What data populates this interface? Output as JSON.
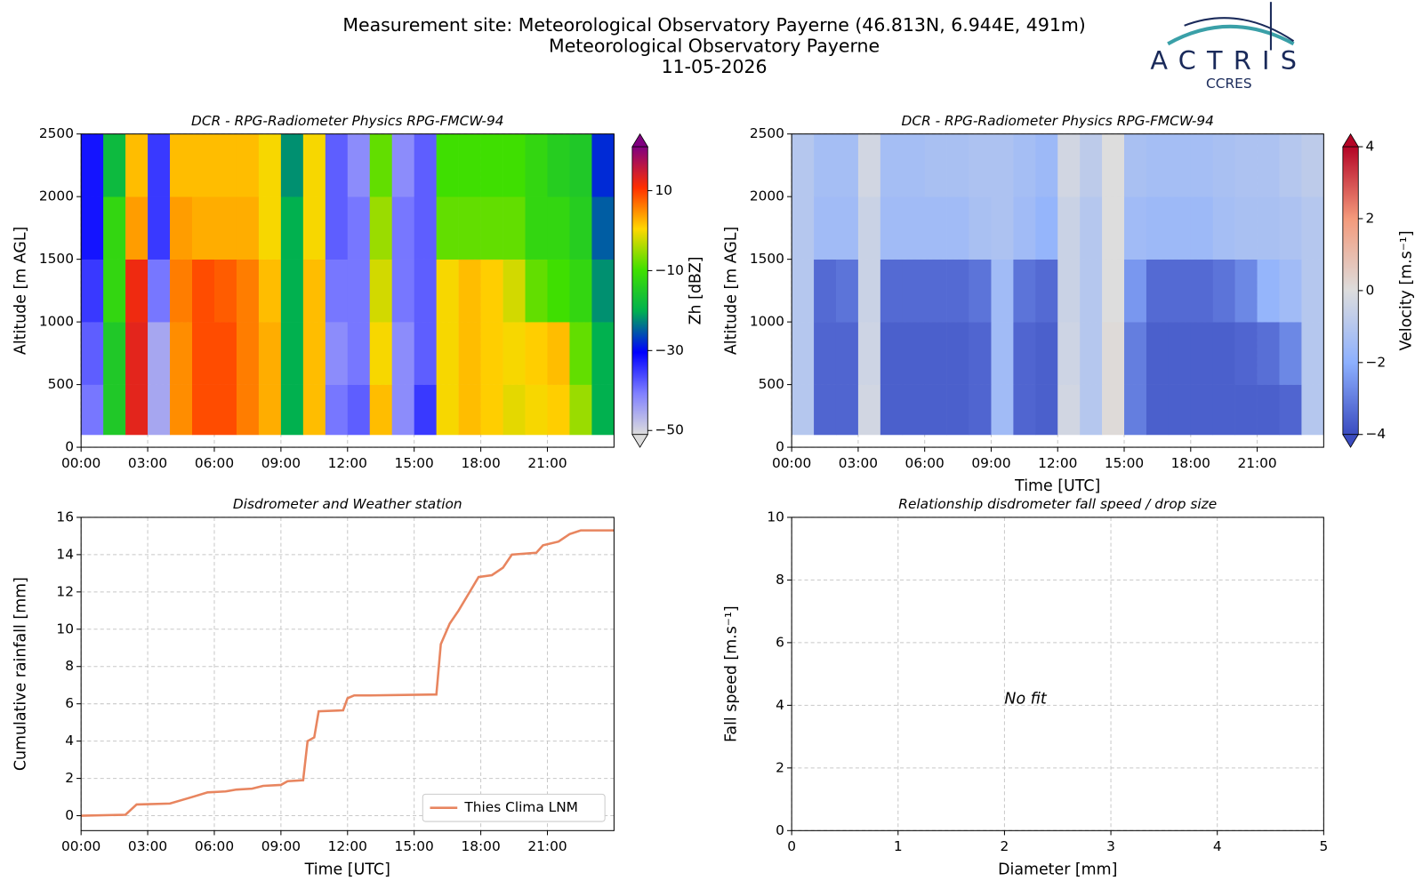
{
  "figure": {
    "title": [
      "Measurement site: Meteorological Observatory Payerne (46.813N, 6.944E, 491m)",
      "Meteorological Observatory Payerne",
      "11-05-2026"
    ],
    "logo": {
      "name": "ACTRIS",
      "subtitle": "CCRES"
    }
  },
  "chart_data": [
    {
      "type": "heatmap",
      "title": "DCR - RPG-Radiometer Physics RPG-FMCW-94",
      "y_label": "Altitude [m AGL]",
      "grid": true,
      "xlim": [
        0,
        24
      ],
      "xticks": [
        {
          "value": 0,
          "label": "00:00"
        },
        {
          "value": 3,
          "label": "03:00"
        },
        {
          "value": 6,
          "label": "06:00"
        },
        {
          "value": 9,
          "label": "09:00"
        },
        {
          "value": 12,
          "label": "12:00"
        },
        {
          "value": 15,
          "label": "15:00"
        },
        {
          "value": 18,
          "label": "18:00"
        },
        {
          "value": 21,
          "label": "21:00"
        }
      ],
      "ylim": [
        0,
        2500
      ],
      "yticks": [
        0,
        500,
        1000,
        1500,
        2000,
        2500
      ],
      "x_edges": [
        0,
        1,
        2,
        3,
        4,
        5,
        6,
        7,
        8,
        9,
        10,
        11,
        12,
        13,
        14,
        15,
        16,
        17,
        18,
        19,
        20,
        21,
        22,
        23,
        24
      ],
      "y_edges": [
        100,
        500,
        1000,
        1500,
        2000,
        2500
      ],
      "z": [
        [
          -40,
          -15,
          13,
          -45,
          5,
          9,
          9,
          6,
          3,
          -20,
          2,
          -40,
          -38,
          2,
          -42,
          -35,
          0,
          2,
          1,
          -1,
          0,
          1,
          -5,
          -20
        ],
        [
          -38,
          -15,
          13,
          -45,
          5,
          9,
          9,
          6,
          3,
          -20,
          2,
          -42,
          -40,
          0,
          -42,
          -38,
          0,
          2,
          1,
          0,
          1,
          2,
          -8,
          -20
        ],
        [
          -35,
          -12,
          12,
          -40,
          6,
          9,
          8,
          6,
          2,
          -20,
          2,
          -40,
          -40,
          -2,
          -40,
          -38,
          0,
          2,
          1,
          -2,
          -8,
          -10,
          -12,
          -22
        ],
        [
          -32,
          -12,
          4,
          -35,
          4,
          3,
          3,
          3,
          0,
          -20,
          0,
          -38,
          -40,
          -5,
          -40,
          -38,
          -8,
          -8,
          -8,
          -8,
          -12,
          -12,
          -14,
          -25
        ],
        [
          -32,
          -18,
          2,
          -35,
          2,
          2,
          2,
          2,
          0,
          -22,
          0,
          -38,
          -42,
          -8,
          -42,
          -38,
          -10,
          -10,
          -10,
          -10,
          -12,
          -14,
          -15,
          -28
        ]
      ],
      "colorbar": {
        "label": "Zh [dBZ]",
        "clim": [
          -51,
          21
        ],
        "ticks": [
          10,
          {
            "value": -10,
            "label": "−10"
          },
          {
            "value": -30,
            "label": "−30"
          },
          {
            "value": -50,
            "label": "−50"
          }
        ],
        "colormap": [
          "#dcdcdc",
          "#8080ff",
          "#0000ff",
          "#00b050",
          "#40e000",
          "#ffd700",
          "#ff3000",
          "#800080"
        ]
      }
    },
    {
      "type": "heatmap",
      "title": "DCR - RPG-Radiometer Physics RPG-FMCW-94",
      "x_label": "Time [UTC]",
      "y_label": "Altitude [m AGL]",
      "grid": true,
      "xlim": [
        0,
        24
      ],
      "xticks": [
        {
          "value": 0,
          "label": "00:00"
        },
        {
          "value": 3,
          "label": "03:00"
        },
        {
          "value": 6,
          "label": "06:00"
        },
        {
          "value": 9,
          "label": "09:00"
        },
        {
          "value": 12,
          "label": "12:00"
        },
        {
          "value": 15,
          "label": "15:00"
        },
        {
          "value": 18,
          "label": "18:00"
        },
        {
          "value": 21,
          "label": "21:00"
        }
      ],
      "ylim": [
        0,
        2500
      ],
      "yticks": [
        0,
        500,
        1000,
        1500,
        2000,
        2500
      ],
      "x_edges": [
        0,
        1,
        2,
        3,
        4,
        5,
        6,
        7,
        8,
        9,
        10,
        11,
        12,
        13,
        14,
        15,
        16,
        17,
        18,
        19,
        20,
        21,
        22,
        23,
        24
      ],
      "y_edges": [
        100,
        500,
        1000,
        1500,
        2000,
        2500
      ],
      "z": [
        [
          -1,
          -3.5,
          -3.5,
          -0.3,
          -3.6,
          -3.6,
          -3.6,
          -3.6,
          -3.5,
          -1.5,
          -3.5,
          -3.6,
          -0.3,
          -1,
          0.1,
          -3,
          -3.6,
          -3.6,
          -3.6,
          -3.6,
          -3.6,
          -3.6,
          -3.5,
          -1
        ],
        [
          -1,
          -3.5,
          -3.5,
          -0.4,
          -3.6,
          -3.6,
          -3.6,
          -3.6,
          -3.5,
          -1.5,
          -3.5,
          -3.6,
          -0.4,
          -1,
          0.1,
          -3,
          -3.6,
          -3.6,
          -3.6,
          -3.6,
          -3.5,
          -3.3,
          -2.8,
          -1
        ],
        [
          -1,
          -3.4,
          -3.2,
          -0.5,
          -3.4,
          -3.4,
          -3.4,
          -3.4,
          -3.2,
          -1.5,
          -3.2,
          -3.4,
          -0.5,
          -1,
          0,
          -2.5,
          -3.4,
          -3.4,
          -3.4,
          -3.2,
          -2.8,
          -1.8,
          -1.5,
          -1
        ],
        [
          -1,
          -1.5,
          -1.5,
          -0.5,
          -1.5,
          -1.5,
          -1.5,
          -1.5,
          -1.3,
          -1.2,
          -1.5,
          -1.8,
          -0.5,
          -1,
          0,
          -1.5,
          -1.6,
          -1.6,
          -1.6,
          -1.4,
          -1.3,
          -1.3,
          -1.2,
          -1
        ],
        [
          -1,
          -1.4,
          -1.4,
          -0.3,
          -1.4,
          -1.4,
          -1.3,
          -1.3,
          -1.2,
          -1.2,
          -1.4,
          -1.6,
          -0.3,
          -0.8,
          0,
          -1.3,
          -1.4,
          -1.4,
          -1.4,
          -1.3,
          -1.2,
          -1.2,
          -1,
          -0.8
        ]
      ],
      "colorbar": {
        "label": "Velocity [m.s⁻¹]",
        "clim": [
          -4,
          4
        ],
        "ticks": [
          4,
          2,
          0,
          {
            "value": -2,
            "label": "−2"
          },
          {
            "value": -4,
            "label": "−4"
          }
        ],
        "colormap": [
          "#3b4cc0",
          "#8db0fe",
          "#dddddd",
          "#f49a7b",
          "#b40426"
        ]
      }
    },
    {
      "type": "line",
      "title": "Disdrometer and Weather station",
      "x_label": "Time [UTC]",
      "y_label": "Cumulative rainfall [mm]",
      "grid": true,
      "legend": "lower right",
      "xlim": [
        0,
        24
      ],
      "xticks": [
        {
          "value": 0,
          "label": "00:00"
        },
        {
          "value": 3,
          "label": "03:00"
        },
        {
          "value": 6,
          "label": "06:00"
        },
        {
          "value": 9,
          "label": "09:00"
        },
        {
          "value": 12,
          "label": "12:00"
        },
        {
          "value": 15,
          "label": "15:00"
        },
        {
          "value": 18,
          "label": "18:00"
        },
        {
          "value": 21,
          "label": "21:00"
        }
      ],
      "ylim": [
        -0.8,
        16
      ],
      "yticks": [
        0,
        2,
        4,
        6,
        8,
        10,
        12,
        14,
        16
      ],
      "x": [
        0,
        2,
        2.5,
        4,
        5,
        5.7,
        6.5,
        7,
        7.7,
        8.2,
        9,
        9.3,
        10,
        10.2,
        10.5,
        10.7,
        11.8,
        12,
        12.3,
        13,
        16,
        16.2,
        16.6,
        17,
        17.5,
        17.9,
        18.5,
        19,
        19.4,
        20.5,
        20.8,
        21.5,
        22,
        22.5,
        24
      ],
      "series": [
        {
          "name": "Thies Clima LNM",
          "color": "#e8855f",
          "values": [
            0,
            0.05,
            0.6,
            0.65,
            1.0,
            1.25,
            1.3,
            1.4,
            1.45,
            1.6,
            1.65,
            1.85,
            1.9,
            4.0,
            4.2,
            5.6,
            5.65,
            6.3,
            6.45,
            6.45,
            6.5,
            9.2,
            10.3,
            11.0,
            12.0,
            12.8,
            12.9,
            13.3,
            14.0,
            14.1,
            14.5,
            14.7,
            15.1,
            15.3,
            15.3
          ]
        }
      ]
    },
    {
      "type": "scatter",
      "title": "Relationship disdrometer fall speed / drop size",
      "x_label": "Diameter [mm]",
      "y_label": "Fall speed [m.s⁻¹]",
      "grid": true,
      "annotation": "No fit",
      "xlim": [
        0,
        5
      ],
      "xticks": [
        0,
        1,
        2,
        3,
        4,
        5
      ],
      "ylim": [
        0,
        10
      ],
      "yticks": [
        0,
        2,
        4,
        6,
        8,
        10
      ]
    }
  ]
}
